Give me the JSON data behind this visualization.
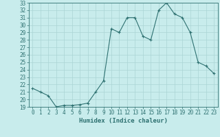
{
  "x": [
    0,
    1,
    2,
    3,
    4,
    5,
    6,
    7,
    8,
    9,
    10,
    11,
    12,
    13,
    14,
    15,
    16,
    17,
    18,
    19,
    20,
    21,
    22,
    23
  ],
  "y": [
    21.5,
    21.0,
    20.5,
    19.0,
    19.2,
    19.2,
    19.3,
    19.5,
    21.0,
    22.5,
    29.5,
    29.0,
    31.0,
    31.0,
    28.5,
    28.0,
    32.0,
    33.0,
    31.5,
    31.0,
    29.0,
    25.0,
    24.5,
    23.5
  ],
  "line_color": "#2d7070",
  "marker": "+",
  "markersize": 3,
  "linewidth": 0.8,
  "xlabel": "Humidex (Indice chaleur)",
  "xlim": [
    -0.5,
    23.5
  ],
  "ylim": [
    19,
    33
  ],
  "yticks": [
    19,
    20,
    21,
    22,
    23,
    24,
    25,
    26,
    27,
    28,
    29,
    30,
    31,
    32,
    33
  ],
  "xticks": [
    0,
    1,
    2,
    3,
    4,
    5,
    6,
    7,
    8,
    9,
    10,
    11,
    12,
    13,
    14,
    15,
    16,
    17,
    18,
    19,
    20,
    21,
    22,
    23
  ],
  "xtick_labels": [
    "0",
    "1",
    "2",
    "3",
    "4",
    "5",
    "6",
    "7",
    "8",
    "9",
    "10",
    "11",
    "12",
    "13",
    "14",
    "15",
    "16",
    "17",
    "18",
    "19",
    "20",
    "21",
    "22",
    "23"
  ],
  "bg_color": "#c8ecec",
  "grid_color": "#aad4d4",
  "text_color": "#2d7070",
  "tick_fontsize": 5.5,
  "xlabel_fontsize": 6.5
}
